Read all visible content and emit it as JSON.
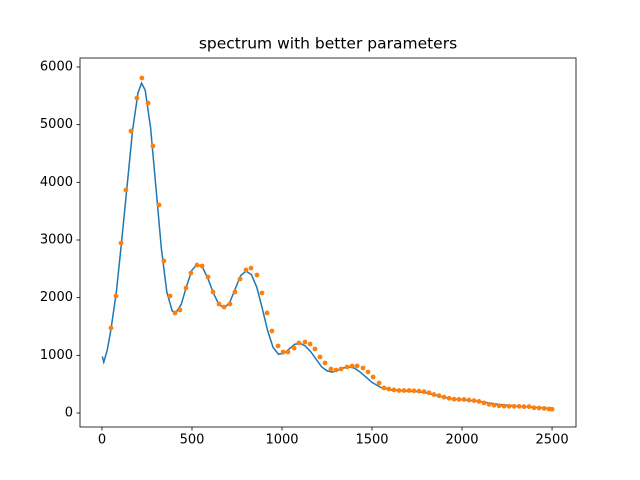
{
  "chart_data": {
    "type": "line",
    "title": "spectrum with better parameters",
    "xlim": [
      -122,
      2633
    ],
    "ylim": [
      -243,
      6156
    ],
    "xticks": [
      0,
      500,
      1000,
      1500,
      2000,
      2500
    ],
    "yticks": [
      0,
      1000,
      2000,
      3000,
      4000,
      5000,
      6000
    ],
    "series": [
      {
        "style": "line",
        "color": "#1f77b4",
        "x": [
          2,
          10,
          30,
          50,
          80,
          110,
          140,
          170,
          200,
          220,
          240,
          270,
          300,
          330,
          360,
          390,
          410,
          440,
          470,
          500,
          530,
          560,
          590,
          620,
          650,
          680,
          710,
          740,
          770,
          800,
          830,
          860,
          890,
          920,
          950,
          980,
          1010,
          1040,
          1070,
          1100,
          1130,
          1160,
          1190,
          1220,
          1250,
          1280,
          1310,
          1340,
          1370,
          1400,
          1430,
          1460,
          1500,
          1550,
          1600,
          1650,
          1700,
          1750,
          1800,
          1850,
          1900,
          1950,
          2000,
          2100,
          2200,
          2300,
          2400,
          2500
        ],
        "values": [
          980,
          880,
          1100,
          1450,
          2100,
          3000,
          3950,
          4900,
          5550,
          5720,
          5600,
          4950,
          3900,
          2850,
          2100,
          1770,
          1740,
          1880,
          2200,
          2480,
          2580,
          2520,
          2320,
          2070,
          1880,
          1820,
          1920,
          2150,
          2380,
          2460,
          2400,
          2180,
          1820,
          1430,
          1140,
          1020,
          1030,
          1110,
          1190,
          1210,
          1160,
          1060,
          930,
          800,
          730,
          710,
          740,
          780,
          800,
          780,
          720,
          640,
          530,
          440,
          400,
          390,
          380,
          370,
          350,
          310,
          270,
          245,
          230,
          200,
          150,
          120,
          100,
          75
        ]
      },
      {
        "style": "points",
        "color": "#ff7f0e",
        "x": [
          50,
          78,
          106,
          133,
          161,
          194,
          222,
          256,
          283,
          317,
          344,
          378,
          406,
          433,
          467,
          494,
          528,
          556,
          589,
          617,
          650,
          678,
          711,
          739,
          767,
          800,
          828,
          861,
          889,
          917,
          944,
          978,
          1006,
          1033,
          1067,
          1094,
          1128,
          1156,
          1183,
          1211,
          1239,
          1272,
          1300,
          1328,
          1361,
          1389,
          1417,
          1450,
          1478,
          1506,
          1539,
          1567,
          1594,
          1622,
          1650,
          1678,
          1706,
          1733,
          1761,
          1789,
          1817,
          1844,
          1872,
          1900,
          1928,
          1956,
          1983,
          2011,
          2039,
          2067,
          2094,
          2122,
          2150,
          2178,
          2206,
          2233,
          2261,
          2289,
          2317,
          2344,
          2372,
          2400,
          2428,
          2456,
          2483,
          2500
        ],
        "values": [
          1474,
          2029,
          2948,
          3867,
          4890,
          5462,
          5809,
          5375,
          4630,
          3607,
          2636,
          2029,
          1734,
          1786,
          2168,
          2428,
          2566,
          2549,
          2358,
          2098,
          1890,
          1838,
          1890,
          2098,
          2324,
          2480,
          2514,
          2393,
          2081,
          1734,
          1422,
          1162,
          1058,
          1058,
          1127,
          1214,
          1231,
          1196,
          1110,
          971,
          867,
          763,
          746,
          763,
          798,
          815,
          815,
          780,
          711,
          624,
          520,
          434,
          416,
          400,
          390,
          390,
          390,
          385,
          380,
          370,
          350,
          320,
          300,
          275,
          255,
          240,
          235,
          235,
          225,
          215,
          200,
          175,
          150,
          135,
          125,
          118,
          115,
          115,
          115,
          110,
          110,
          90,
          85,
          80,
          70,
          65
        ]
      }
    ]
  }
}
